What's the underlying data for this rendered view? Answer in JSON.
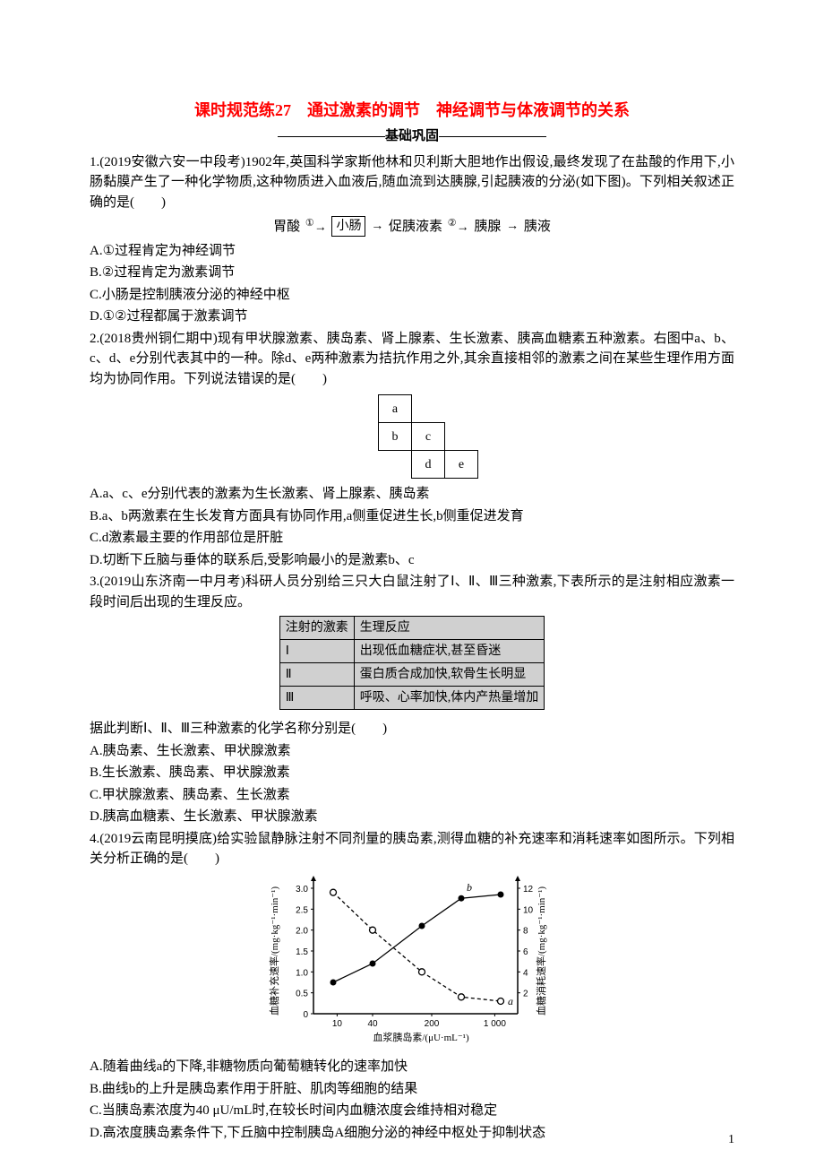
{
  "title": "课时规范练27　通过激素的调节　神经调节与体液调节的关系",
  "subtitle": "基础巩固",
  "q1": {
    "stem": "1.(2019安徽六安一中段考)1902年,英国科学家斯他林和贝利斯大胆地作出假设,最终发现了在盐酸的作用下,小肠黏膜产生了一种化学物质,这种物质进入血液后,随血流到达胰腺,引起胰液的分泌(如下图)。下列相关叙述正确的是(　　)",
    "flow": {
      "a": "胃酸",
      "b": "小肠",
      "c": "促胰液素",
      "d": "胰腺",
      "e": "胰液",
      "n1": "①",
      "n2": "②"
    },
    "optA": "A.①过程肯定为神经调节",
    "optB": "B.②过程肯定为激素调节",
    "optC": "C.小肠是控制胰液分泌的神经中枢",
    "optD": "D.①②过程都属于激素调节"
  },
  "q2": {
    "stem": "2.(2018贵州铜仁期中)现有甲状腺激素、胰岛素、肾上腺素、生长激素、胰高血糖素五种激素。右图中a、b、c、d、e分别代表其中的一种。除d、e两种激素为拮抗作用之外,其余直接相邻的激素之间在某些生理作用方面均为协同作用。下列说法错误的是(　　)",
    "grid": {
      "a": "a",
      "b": "b",
      "c": "c",
      "d": "d",
      "e": "e"
    },
    "optA": "A.a、c、e分别代表的激素为生长激素、肾上腺素、胰岛素",
    "optB": "B.a、b两激素在生长发育方面具有协同作用,a侧重促进生长,b侧重促进发育",
    "optC": "C.d激素最主要的作用部位是肝脏",
    "optD": "D.切断下丘脑与垂体的联系后,受影响最小的是激素b、c"
  },
  "q3": {
    "stem": "3.(2019山东济南一中月考)科研人员分别给三只大白鼠注射了Ⅰ、Ⅱ、Ⅲ三种激素,下表所示的是注射相应激素一段时间后出现的生理反应。",
    "table": {
      "h1": "注射的激素",
      "h2": "生理反应",
      "r1c1": "Ⅰ",
      "r1c2": "出现低血糖症状,甚至昏迷",
      "r2c1": "Ⅱ",
      "r2c2": "蛋白质合成加快,软骨生长明显",
      "r3c1": "Ⅲ",
      "r3c2": "呼吸、心率加快,体内产热量增加"
    },
    "post": "据此判断Ⅰ、Ⅱ、Ⅲ三种激素的化学名称分别是(　　)",
    "optA": "A.胰岛素、生长激素、甲状腺激素",
    "optB": "B.生长激素、胰岛素、甲状腺激素",
    "optC": "C.甲状腺激素、胰岛素、生长激素",
    "optD": "D.胰高血糖素、生长激素、甲状腺激素"
  },
  "q4": {
    "stem": "4.(2019云南昆明摸底)给实验鼠静脉注射不同剂量的胰岛素,测得血糖的补充速率和消耗速率如图所示。下列相关分析正确的是(　　)",
    "chart": {
      "type": "line",
      "ylab_left": "血糖补充速率/(mg·kg⁻¹·min⁻¹)",
      "ylab_right": "血糖消耗速率/(mg·kg⁻¹·min⁻¹)",
      "xlab": "血浆胰岛素/(μU·mL⁻¹)",
      "xticks": [
        "10",
        "40",
        "200",
        "1 000"
      ],
      "left_yticks": [
        "0",
        "0.5",
        "1.0",
        "1.5",
        "2.0",
        "2.5",
        "3.0"
      ],
      "right_yticks": [
        "2",
        "4",
        "6",
        "8",
        "10",
        "12"
      ],
      "series_a": {
        "label": "a",
        "color": "#000000",
        "marker": "circle-open",
        "dash": "dashed",
        "points": [
          [
            0.1,
            2.9
          ],
          [
            0.3,
            2.0
          ],
          [
            0.55,
            1.0
          ],
          [
            0.75,
            0.4
          ],
          [
            0.95,
            0.3
          ]
        ]
      },
      "series_b": {
        "label": "b",
        "color": "#000000",
        "marker": "circle",
        "dash": "solid",
        "points": [
          [
            0.1,
            0.25
          ],
          [
            0.3,
            0.4
          ],
          [
            0.55,
            0.7
          ],
          [
            0.75,
            0.92
          ],
          [
            0.95,
            0.95
          ]
        ]
      }
    },
    "optA": "A.随着曲线a的下降,非糖物质向葡萄糖转化的速率加快",
    "optB": "B.曲线b的上升是胰岛素作用于肝脏、肌肉等细胞的结果",
    "optC": "C.当胰岛素浓度为40 μU/mL时,在较长时间内血糖浓度会维持相对稳定",
    "optD": "D.高浓度胰岛素条件下,下丘脑中控制胰岛A细胞分泌的神经中枢处于抑制状态"
  },
  "pagenum": "1"
}
